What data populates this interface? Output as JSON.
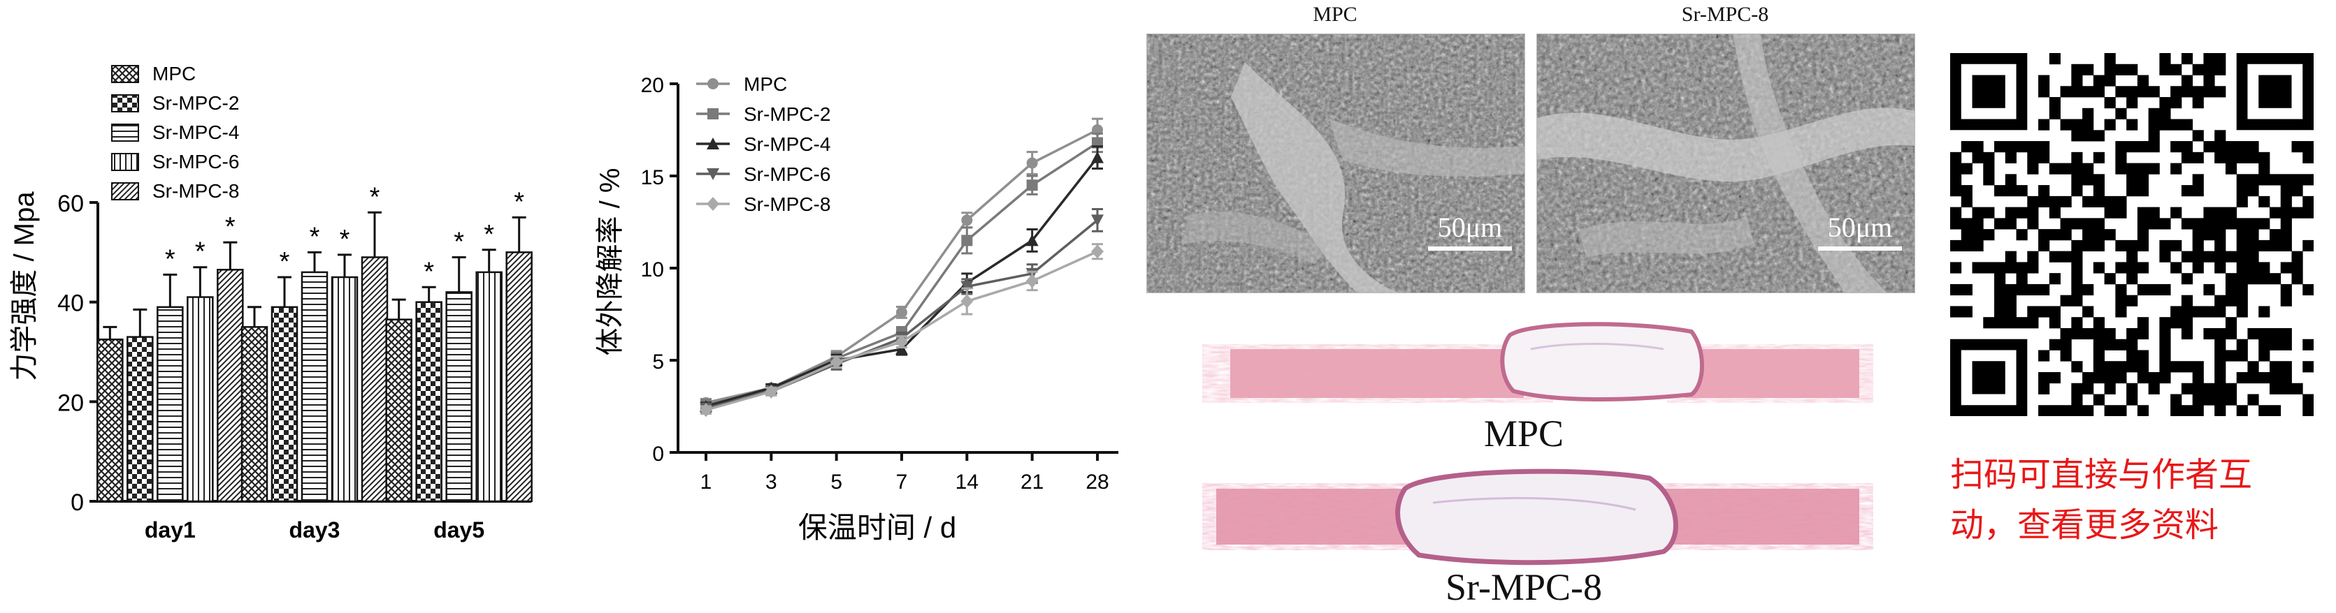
{
  "panel_a": {
    "chart_data": {
      "type": "bar",
      "ylabel": "力学强度 / Mpa",
      "ylim": [
        0,
        60
      ],
      "yticks": [
        "0",
        "20",
        "40",
        "60"
      ],
      "categories": [
        "day1",
        "day3",
        "day5"
      ],
      "series": [
        {
          "name": "MPC",
          "values": [
            32.5,
            35,
            36.5
          ],
          "errors": [
            2.5,
            4,
            4
          ],
          "sig": [
            false,
            false,
            false
          ]
        },
        {
          "name": "Sr-MPC-2",
          "values": [
            33,
            39,
            40
          ],
          "errors": [
            5.5,
            6,
            3
          ],
          "sig": [
            false,
            true,
            true
          ]
        },
        {
          "name": "Sr-MPC-4",
          "values": [
            39,
            46,
            42
          ],
          "errors": [
            6.5,
            4,
            7
          ],
          "sig": [
            true,
            true,
            true
          ]
        },
        {
          "name": "Sr-MPC-6",
          "values": [
            41,
            45,
            46
          ],
          "errors": [
            6,
            4.5,
            4.5
          ],
          "sig": [
            true,
            true,
            true
          ]
        },
        {
          "name": "Sr-MPC-8",
          "values": [
            46.5,
            49,
            50
          ],
          "errors": [
            5.5,
            9,
            7
          ],
          "sig": [
            true,
            true,
            true
          ]
        }
      ],
      "annotation": "*",
      "legend": "top-left",
      "grid": false
    }
  },
  "panel_b": {
    "chart_data": {
      "type": "line",
      "xlabel": "保温时间 / d",
      "ylabel": "体外降解率 / %",
      "ylim": [
        0,
        20
      ],
      "yticks": [
        "0",
        "5",
        "10",
        "15",
        "20"
      ],
      "x": [
        "1",
        "3",
        "5",
        "7",
        "14",
        "21",
        "28"
      ],
      "series": [
        {
          "name": "MPC",
          "marker": "circle",
          "values": [
            2.7,
            3.5,
            5.2,
            7.6,
            12.6,
            15.7,
            17.5
          ],
          "errors": [
            0.2,
            0.2,
            0.3,
            0.3,
            0.4,
            0.6,
            0.6
          ]
        },
        {
          "name": "Sr-MPC-2",
          "marker": "square",
          "values": [
            2.6,
            3.4,
            5.1,
            6.5,
            11.5,
            14.5,
            16.8
          ],
          "errors": [
            0.2,
            0.2,
            0.3,
            0.3,
            0.7,
            0.5,
            0.5
          ]
        },
        {
          "name": "Sr-MPC-4",
          "marker": "triangle-up",
          "values": [
            2.5,
            3.5,
            5.0,
            5.6,
            9.2,
            11.5,
            16.0
          ],
          "errors": [
            0.2,
            0.2,
            0.3,
            0.3,
            0.5,
            0.6,
            0.6
          ]
        },
        {
          "name": "Sr-MPC-6",
          "marker": "triangle-down",
          "values": [
            2.4,
            3.3,
            4.8,
            6.2,
            9.0,
            9.7,
            12.6
          ],
          "errors": [
            0.2,
            0.2,
            0.3,
            0.3,
            0.4,
            0.5,
            0.6
          ]
        },
        {
          "name": "Sr-MPC-8",
          "marker": "diamond",
          "values": [
            2.3,
            3.3,
            4.9,
            6.0,
            8.2,
            9.3,
            10.9
          ],
          "errors": [
            0.2,
            0.2,
            0.3,
            0.3,
            0.7,
            0.5,
            0.4
          ]
        }
      ],
      "legend": "top-left",
      "grid": false
    }
  },
  "sem": {
    "left_title": "MPC",
    "right_title": "Sr-MPC-8",
    "scale_label": "50μm"
  },
  "histology": {
    "top_label": "MPC",
    "bottom_label": "Sr-MPC-8"
  },
  "qr": {
    "icon": "qr-code-icon"
  },
  "note": {
    "line1": "扫码可直接与作者互",
    "line2": "动，查看更多资料",
    "color": "#e81818"
  }
}
